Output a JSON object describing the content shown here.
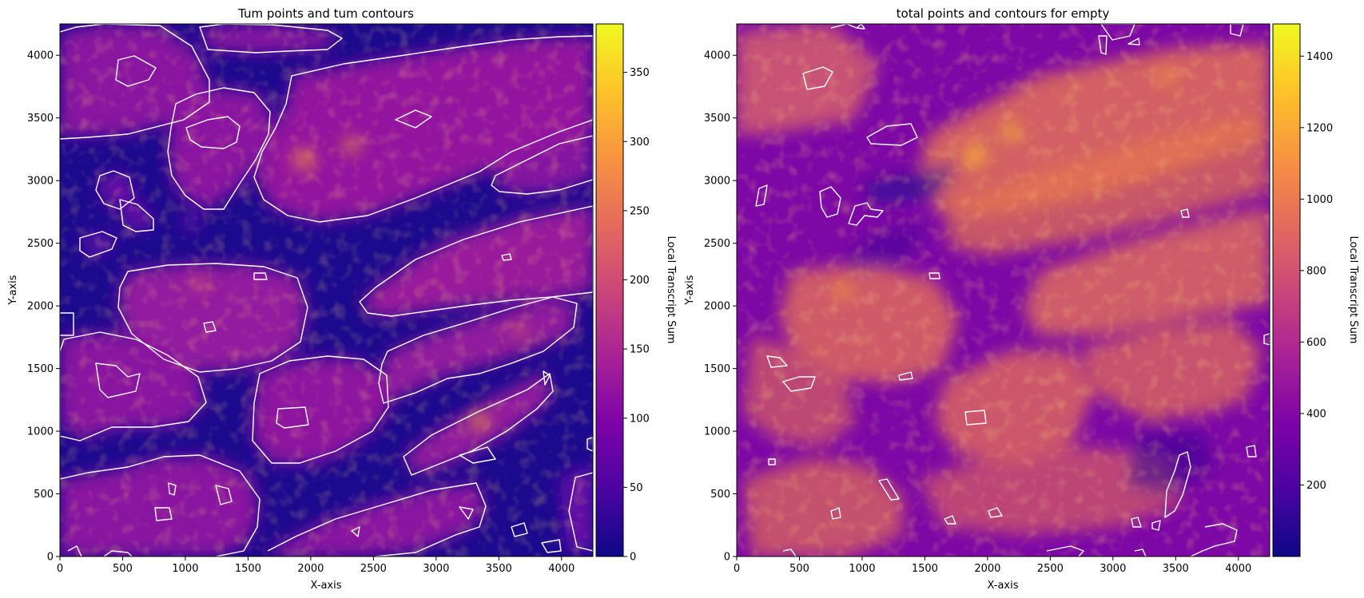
{
  "chart_data": [
    {
      "type": "heatmap",
      "title": "Tum points and tum contours",
      "xlabel": "X-axis",
      "ylabel": "Y-axis",
      "xlim": [
        0,
        4250
      ],
      "ylim": [
        0,
        4250
      ],
      "xticks": [
        0,
        500,
        1000,
        1500,
        2000,
        2500,
        3000,
        3500,
        4000
      ],
      "yticks": [
        0,
        500,
        1000,
        1500,
        2000,
        2500,
        3000,
        3500,
        4000
      ],
      "colormap": "plasma",
      "colorbar": {
        "label": "Local Transcript Sum",
        "range": [
          0,
          385
        ],
        "ticks": [
          0,
          50,
          100,
          150,
          200,
          250,
          300,
          350
        ]
      },
      "contour_color": "#ffffff",
      "grid": false
    },
    {
      "type": "heatmap",
      "title": "total points and contours for empty",
      "xlabel": "X-axis",
      "ylabel": "Y-axis",
      "xlim": [
        0,
        4250
      ],
      "ylim": [
        0,
        4250
      ],
      "xticks": [
        0,
        500,
        1000,
        1500,
        2000,
        2500,
        3000,
        3500,
        4000
      ],
      "yticks": [
        0,
        500,
        1000,
        1500,
        2000,
        2500,
        3000,
        3500,
        4000
      ],
      "colormap": "plasma",
      "colorbar": {
        "label": "Local Transcript Sum",
        "range": [
          0,
          1490
        ],
        "ticks": [
          200,
          400,
          600,
          800,
          1000,
          1200,
          1400
        ]
      },
      "contour_color": "#ffffff",
      "grid": false
    }
  ]
}
